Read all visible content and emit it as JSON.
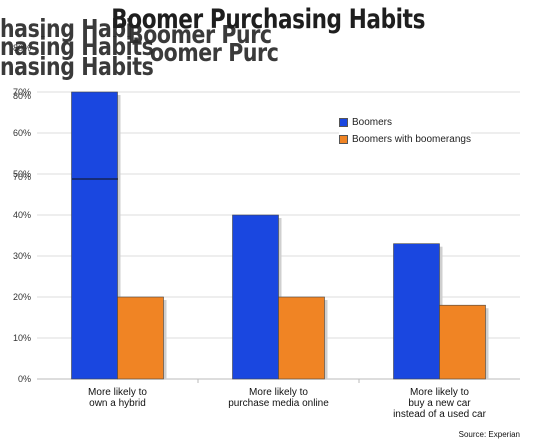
{
  "title": "Boomer Purchasing Habits",
  "ghost_fragments": [
    "hasing Habi",
    "Boomer Purc",
    "nasing Habits",
    "oomer Purc",
    "nasing Habits"
  ],
  "legend": [
    "Boomers",
    "Boomers with boomerangs"
  ],
  "source": "Source: Experian",
  "colors": {
    "boomers": "#1a47e0",
    "boomerangs": "#f08424",
    "grid": "#dddddd",
    "axis_text": "#333333"
  },
  "chart_data": {
    "type": "bar",
    "title": "Boomer Purchasing Habits",
    "categories": [
      [
        "More likely to",
        "own a hybrid"
      ],
      [
        "More likely to",
        "purchase media online"
      ],
      [
        "More likely to",
        "buy a new car",
        "instead of a used car"
      ]
    ],
    "series": [
      {
        "name": "Boomers",
        "values": [
          70,
          40,
          33
        ]
      },
      {
        "name": "Boomers with boomerangs",
        "values": [
          20,
          20,
          18
        ]
      }
    ],
    "ylim": [
      0,
      70
    ],
    "yticks": [
      "0%",
      "10%",
      "20%",
      "30%",
      "40%",
      "50%",
      "60%",
      "70%"
    ],
    "ghost_yticks": [
      "80%",
      "80%",
      "70%"
    ],
    "grid": true,
    "legend_position": "top-right",
    "xlabel": "",
    "ylabel": ""
  }
}
